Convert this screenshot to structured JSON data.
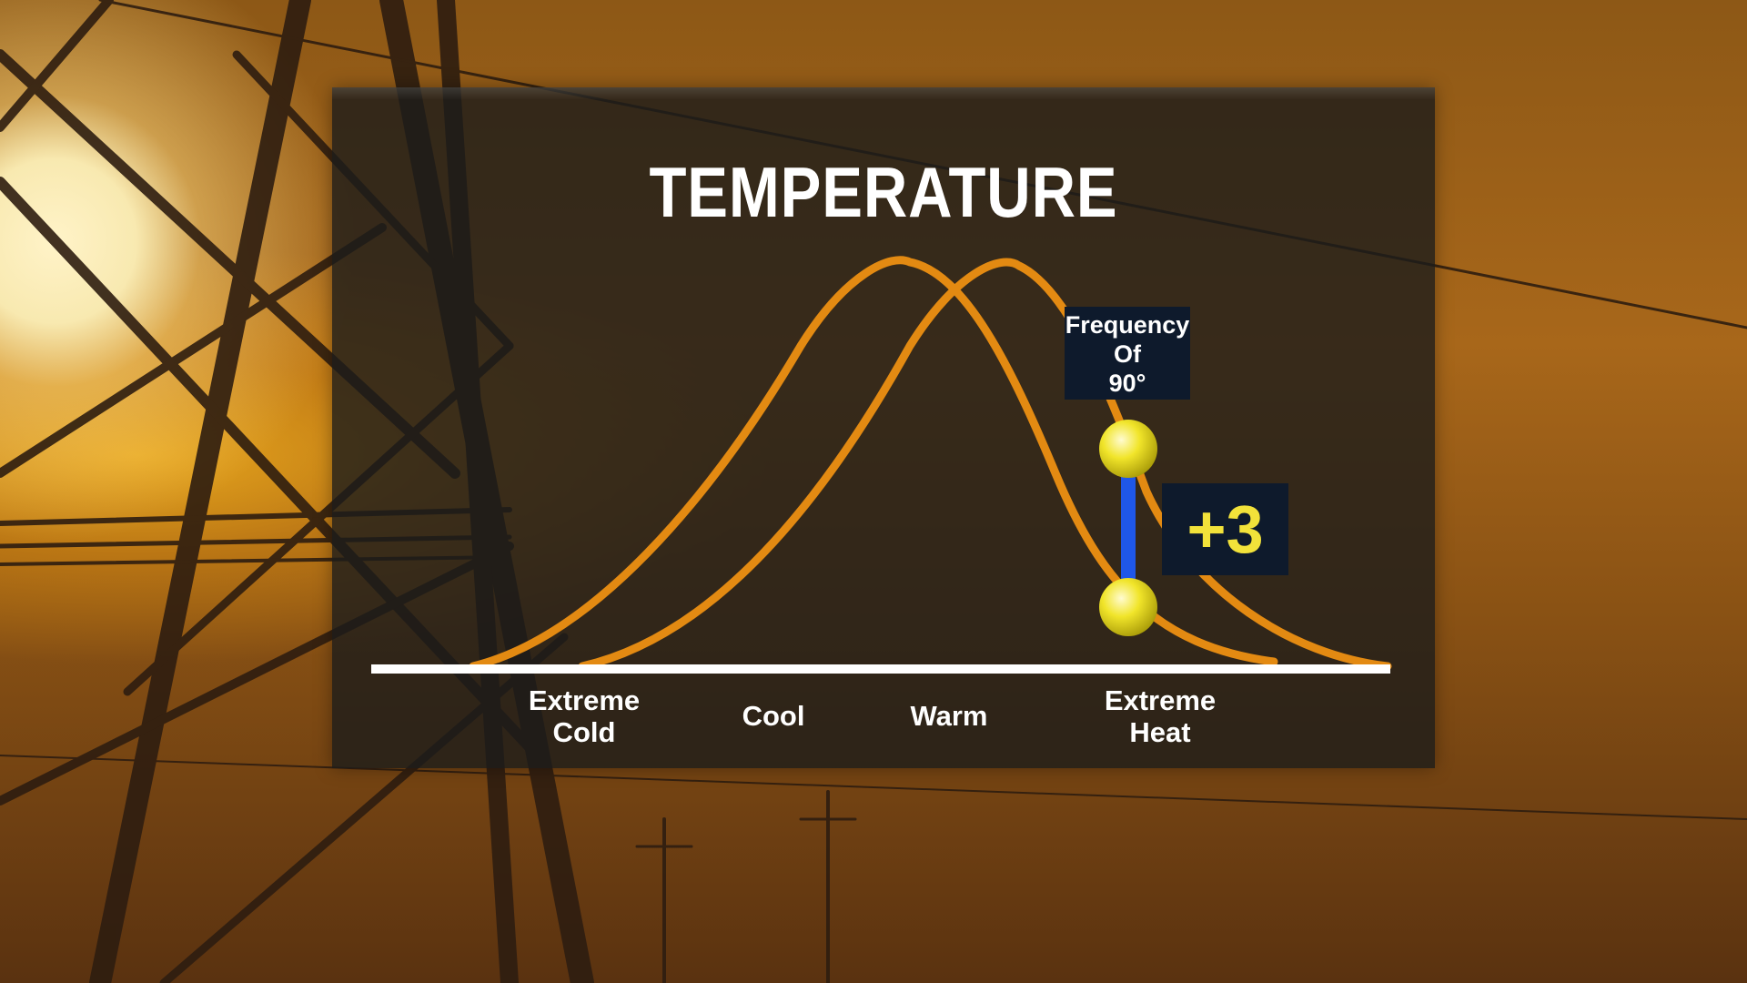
{
  "title": "TEMPERATURE",
  "axis_labels": [
    "Extreme\nCold",
    "Cool",
    "Warm",
    "Extreme\nHeat"
  ],
  "callouts": {
    "frequency_lines": [
      "Frequency",
      "Of",
      "90°"
    ],
    "delta": "+3"
  },
  "colors": {
    "curve": "#e38a12",
    "marker": "#f4ec2a",
    "connector": "#1f57e8",
    "callout_bg": "#0e1a2c",
    "delta_text": "#f2e23a",
    "panel_bg": "rgba(28,27,26,0.80)"
  },
  "chart_data": {
    "type": "line",
    "series": [
      {
        "description": "baseline distribution",
        "shape": "bell curve"
      },
      {
        "description": "shifted distribution",
        "shape": "bell curve shifted toward heat"
      }
    ],
    "markers": [
      {
        "on": "series 1 right tail",
        "near": "Extreme Heat"
      },
      {
        "on": "series 2 right tail",
        "near": "Extreme Heat"
      }
    ],
    "annotation": "+3"
  }
}
